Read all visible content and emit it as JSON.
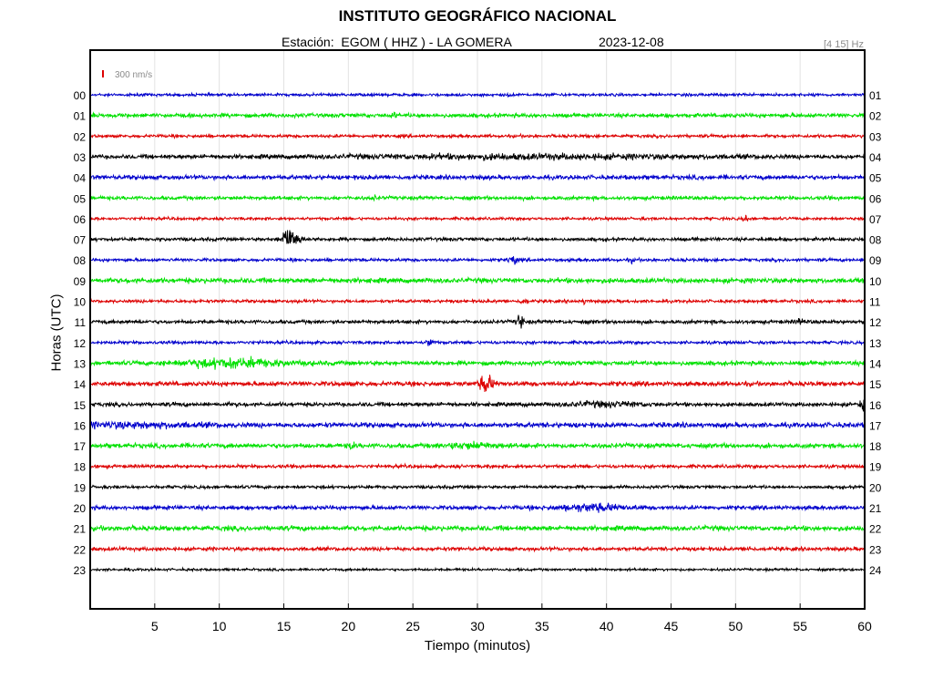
{
  "header": {
    "title": "INSTITUTO GEOGRÁFICO NACIONAL",
    "station": "Estación:  EGOM ( HHZ ) - LA GOMERA",
    "date": "2023-12-08",
    "filter": "[4 15] Hz"
  },
  "scale_label": "300 nm/s",
  "colors": {
    "blue": "#0000cc",
    "green": "#00e000",
    "red": "#dd0000",
    "black": "#000000"
  },
  "chart_data": {
    "type": "line",
    "chart_kind": "helicorder seismogram",
    "xlabel": "Tiempo (minutos)",
    "ylabel": "Horas (UTC)",
    "xlim": [
      0,
      60
    ],
    "xticks": [
      5,
      10,
      15,
      20,
      25,
      30,
      35,
      40,
      45,
      50,
      55,
      60
    ],
    "grid": "vertical",
    "left_labels": [
      "00",
      "01",
      "02",
      "03",
      "04",
      "05",
      "06",
      "07",
      "08",
      "09",
      "10",
      "11",
      "12",
      "13",
      "14",
      "15",
      "16",
      "17",
      "18",
      "19",
      "20",
      "21",
      "22",
      "23"
    ],
    "right_labels": [
      "01",
      "02",
      "03",
      "04",
      "05",
      "06",
      "07",
      "08",
      "09",
      "10",
      "11",
      "12",
      "13",
      "14",
      "15",
      "16",
      "17",
      "18",
      "19",
      "20",
      "21",
      "22",
      "23",
      "24"
    ],
    "color_cycle": [
      "blue",
      "green",
      "red",
      "black"
    ],
    "events": [
      {
        "hour": 0,
        "minute": 32.5,
        "amplitude": 0.8
      },
      {
        "hour": 0,
        "minute": 36,
        "amplitude": 0.6
      },
      {
        "hour": 1,
        "minute": 23.5,
        "amplitude": 1.2
      },
      {
        "hour": 3,
        "minute": 34,
        "amplitude": 1.0,
        "duration": 30
      },
      {
        "hour": 5,
        "minute": 22,
        "amplitude": 1.0
      },
      {
        "hour": 6,
        "minute": 50.8,
        "amplitude": 1.5
      },
      {
        "hour": 7,
        "minute": 15.5,
        "amplitude": 9.0,
        "duration": 1.2
      },
      {
        "hour": 8,
        "minute": 32.7,
        "amplitude": 4.0
      },
      {
        "hour": 8,
        "minute": 42,
        "amplitude": 1.2
      },
      {
        "hour": 10,
        "minute": 33.6,
        "amplitude": 2.0
      },
      {
        "hour": 10,
        "minute": 38.3,
        "amplitude": 1.2
      },
      {
        "hour": 11,
        "minute": 33.3,
        "amplitude": 5.0
      },
      {
        "hour": 11,
        "minute": 55,
        "amplitude": 2.0
      },
      {
        "hour": 12,
        "minute": 26.4,
        "amplitude": 3.0
      },
      {
        "hour": 13,
        "minute": 11,
        "amplitude": 2.5,
        "duration": 8
      },
      {
        "hour": 14,
        "minute": 30.7,
        "amplitude": 6.0,
        "duration": 1.0
      },
      {
        "hour": 15,
        "minute": 40,
        "amplitude": 1.2,
        "duration": 6
      },
      {
        "hour": 15,
        "minute": 59.8,
        "amplitude": 3.0
      },
      {
        "hour": 16,
        "minute": 3,
        "amplitude": 1.2,
        "duration": 10
      },
      {
        "hour": 17,
        "minute": 20.2,
        "amplitude": 2.0
      },
      {
        "hour": 17,
        "minute": 29.5,
        "amplitude": 1.5,
        "duration": 4
      },
      {
        "hour": 20,
        "minute": 39,
        "amplitude": 2.0,
        "duration": 5
      },
      {
        "hour": 22,
        "minute": 51,
        "amplitude": 1.0
      }
    ]
  }
}
